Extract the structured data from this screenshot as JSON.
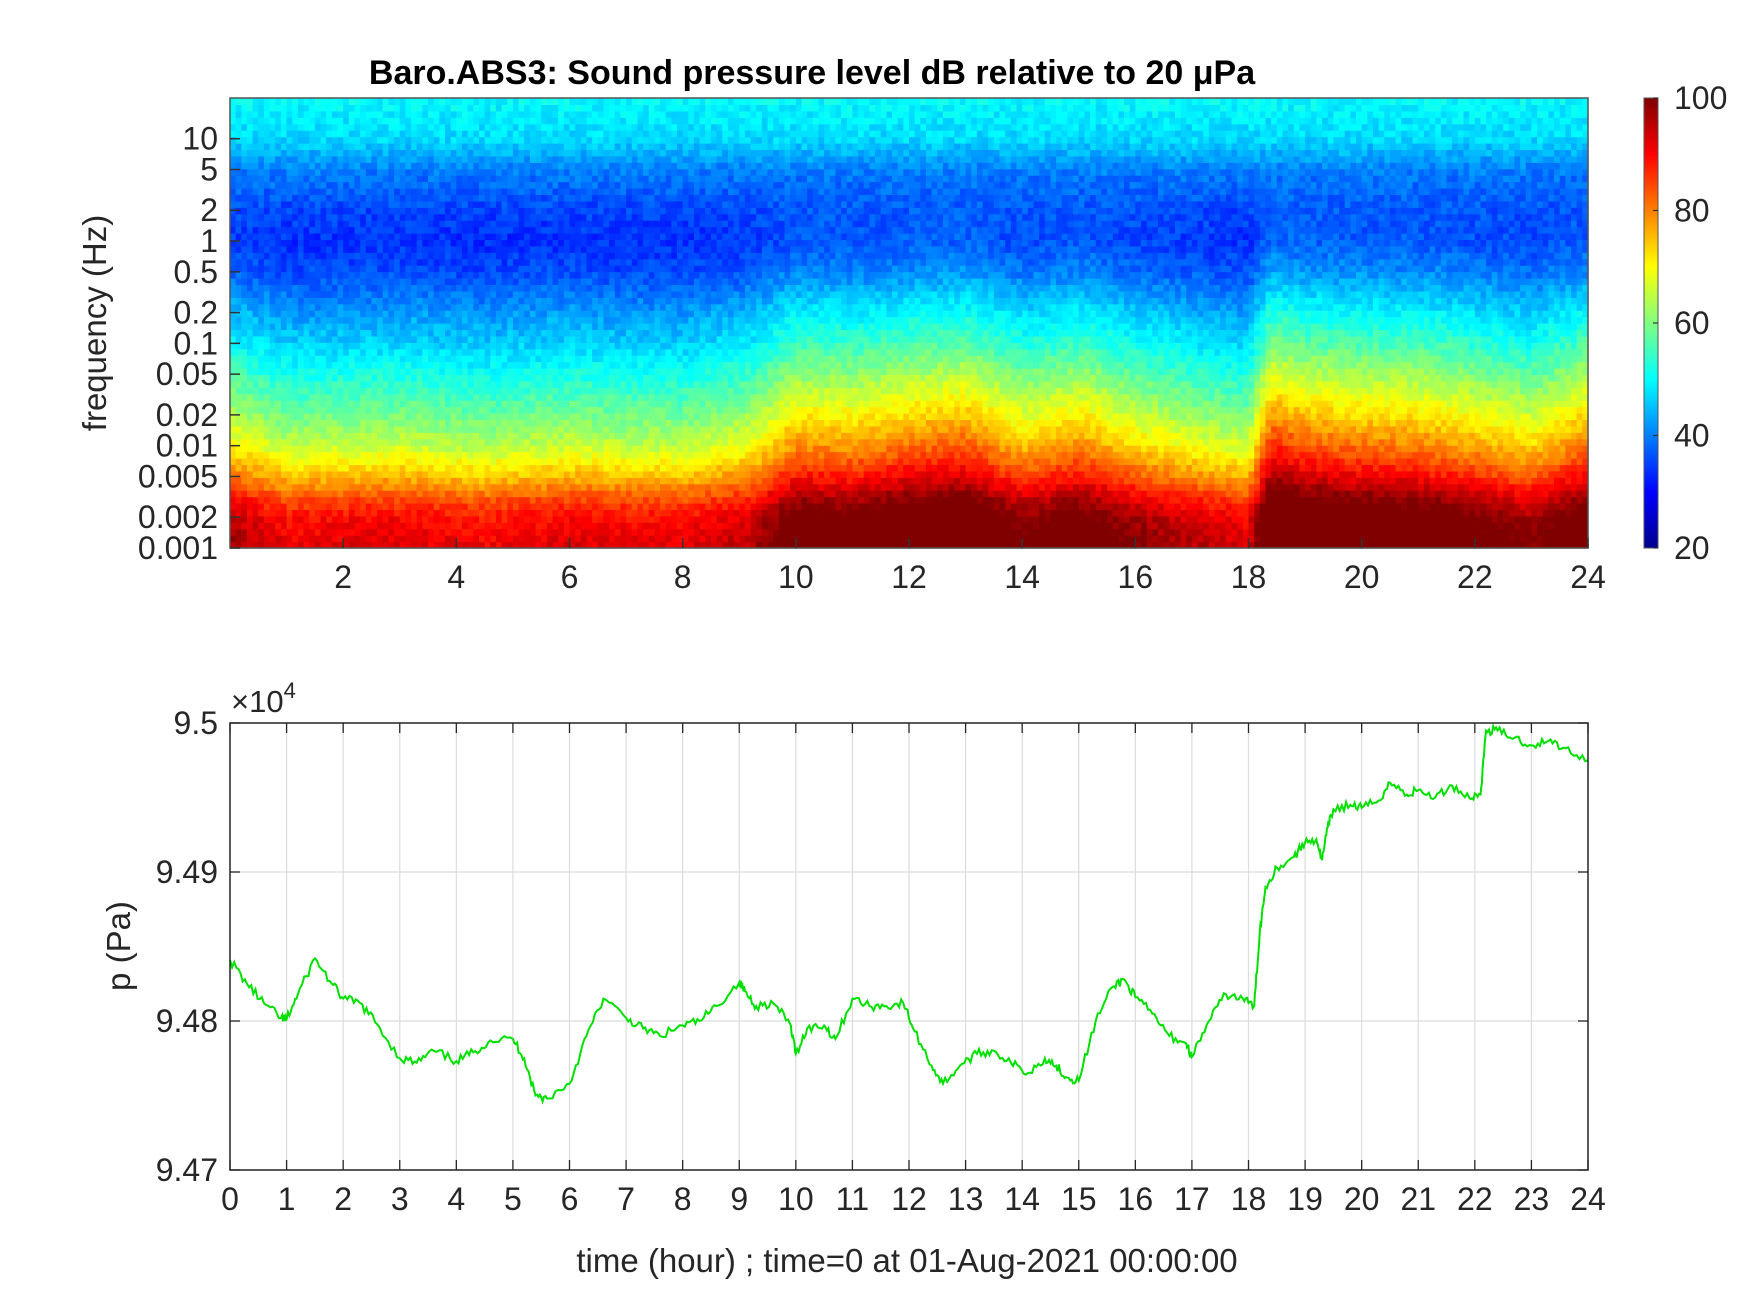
{
  "chart_data": [
    {
      "type": "heatmap",
      "title": "Baro.ABS3: Sound pressure level dB relative to 20 μPa",
      "xlabel": "",
      "ylabel": "frequency (Hz)",
      "x_range": [
        0,
        24
      ],
      "x_ticks": [
        2,
        4,
        6,
        8,
        10,
        12,
        14,
        16,
        18,
        20,
        22,
        24
      ],
      "y_scale": "log",
      "y_range": [
        0.001,
        25
      ],
      "y_ticks": [
        0.001,
        0.002,
        0.005,
        0.01,
        0.02,
        0.05,
        0.1,
        0.2,
        0.5,
        1,
        2,
        5,
        10
      ],
      "colorbar": {
        "range": [
          20,
          100
        ],
        "ticks": [
          20,
          40,
          60,
          80,
          100
        ],
        "colormap": "jet"
      },
      "baseline_db_by_frequency": [
        {
          "frequency": 0.001,
          "db": 90
        },
        {
          "frequency": 0.002,
          "db": 87
        },
        {
          "frequency": 0.003,
          "db": 82
        },
        {
          "frequency": 0.005,
          "db": 73
        },
        {
          "frequency": 0.01,
          "db": 63
        },
        {
          "frequency": 0.02,
          "db": 57
        },
        {
          "frequency": 0.05,
          "db": 50
        },
        {
          "frequency": 0.1,
          "db": 45
        },
        {
          "frequency": 0.2,
          "db": 41
        },
        {
          "frequency": 0.5,
          "db": 35
        },
        {
          "frequency": 1,
          "db": 33
        },
        {
          "frequency": 2,
          "db": 35
        },
        {
          "frequency": 5,
          "db": 40
        },
        {
          "frequency": 10,
          "db": 47
        },
        {
          "frequency": 25,
          "db": 50
        }
      ],
      "activity_by_hour": [
        {
          "hour": 0,
          "extra_db": 8
        },
        {
          "hour": 1,
          "extra_db": 2
        },
        {
          "hour": 3,
          "extra_db": 3
        },
        {
          "hour": 4.5,
          "extra_db": 1
        },
        {
          "hour": 6,
          "extra_db": 3
        },
        {
          "hour": 7,
          "extra_db": 2
        },
        {
          "hour": 8,
          "extra_db": 2
        },
        {
          "hour": 9.2,
          "extra_db": 6
        },
        {
          "hour": 10,
          "extra_db": 16
        },
        {
          "hour": 11,
          "extra_db": 15
        },
        {
          "hour": 12,
          "extra_db": 18
        },
        {
          "hour": 13,
          "extra_db": 20
        },
        {
          "hour": 14,
          "extra_db": 12
        },
        {
          "hour": 15,
          "extra_db": 16
        },
        {
          "hour": 16,
          "extra_db": 10
        },
        {
          "hour": 17,
          "extra_db": 6
        },
        {
          "hour": 18,
          "extra_db": 3
        },
        {
          "hour": 18.4,
          "extra_db": 24
        },
        {
          "hour": 19,
          "extra_db": 20
        },
        {
          "hour": 20,
          "extra_db": 18
        },
        {
          "hour": 21,
          "extra_db": 17
        },
        {
          "hour": 22,
          "extra_db": 14
        },
        {
          "hour": 23,
          "extra_db": 10
        },
        {
          "hour": 24,
          "extra_db": 18
        }
      ]
    },
    {
      "type": "line",
      "title": "",
      "xlabel": "time (hour) ; time=0 at 01-Aug-2021 00:00:00",
      "ylabel": "p (Pa)",
      "y_exponent_label": "×10",
      "y_exponent": "4",
      "x_range": [
        0,
        24
      ],
      "x_ticks": [
        0,
        1,
        2,
        3,
        4,
        5,
        6,
        7,
        8,
        9,
        10,
        11,
        12,
        13,
        14,
        15,
        16,
        17,
        18,
        19,
        20,
        21,
        22,
        23,
        24
      ],
      "y_range": [
        9.47,
        9.5
      ],
      "y_ticks": [
        9.47,
        9.48,
        9.49,
        9.5
      ],
      "y_tick_labels": [
        "9.47",
        "9.48",
        "9.49",
        "9.5"
      ],
      "grid": true,
      "series": [
        {
          "color": "#00e000",
          "x": [
            0,
            0.3,
            0.6,
            0.9,
            1.0,
            1.2,
            1.5,
            1.8,
            2.0,
            2.3,
            2.6,
            3.0,
            3.3,
            3.6,
            4.0,
            4.3,
            4.6,
            5.0,
            5.2,
            5.4,
            5.6,
            6.0,
            6.3,
            6.6,
            7.0,
            7.3,
            7.6,
            8.0,
            8.3,
            8.6,
            9.0,
            9.1,
            9.3,
            9.6,
            9.9,
            10.0,
            10.2,
            10.5,
            10.7,
            11.0,
            11.3,
            11.6,
            11.9,
            12.1,
            12.4,
            12.6,
            12.9,
            13.2,
            13.5,
            13.8,
            14.1,
            14.4,
            14.6,
            14.8,
            15.0,
            15.3,
            15.6,
            15.8,
            16.0,
            16.3,
            16.6,
            16.9,
            17.0,
            17.3,
            17.6,
            17.9,
            18.1,
            18.2,
            18.3,
            18.5,
            18.8,
            19.0,
            19.2,
            19.3,
            19.4,
            19.5,
            19.8,
            20.0,
            20.3,
            20.5,
            20.8,
            21.0,
            21.3,
            21.6,
            21.9,
            22.1,
            22.2,
            22.4,
            22.7,
            23.0,
            23.3,
            23.6,
            24.0
          ],
          "y": [
            9.4841,
            9.4825,
            9.4812,
            9.4802,
            9.4801,
            9.4818,
            9.4842,
            9.4825,
            9.4815,
            9.4812,
            9.4798,
            9.4775,
            9.4772,
            9.478,
            9.4773,
            9.4779,
            9.4787,
            9.4788,
            9.4775,
            9.475,
            9.4748,
            9.4758,
            9.479,
            9.4815,
            9.4802,
            9.4795,
            9.479,
            9.4797,
            9.48,
            9.481,
            9.4826,
            9.482,
            9.481,
            9.4812,
            9.4798,
            9.4778,
            9.4795,
            9.4797,
            9.4788,
            9.4815,
            9.481,
            9.481,
            9.4812,
            9.4793,
            9.477,
            9.4758,
            9.477,
            9.4778,
            9.478,
            9.4772,
            9.4765,
            9.4775,
            9.477,
            9.4762,
            9.476,
            9.48,
            9.4823,
            9.4828,
            9.4816,
            9.4805,
            9.479,
            9.4785,
            9.4776,
            9.48,
            9.4818,
            9.4815,
            9.481,
            9.486,
            9.489,
            9.4903,
            9.491,
            9.492,
            9.4922,
            9.4908,
            9.493,
            9.4942,
            9.4945,
            9.4943,
            9.4948,
            9.496,
            9.4952,
            9.4955,
            9.495,
            9.4958,
            9.495,
            9.4952,
            9.4995,
            9.4995,
            9.499,
            9.4985,
            9.4988,
            9.4983,
            9.4975
          ]
        }
      ]
    }
  ]
}
